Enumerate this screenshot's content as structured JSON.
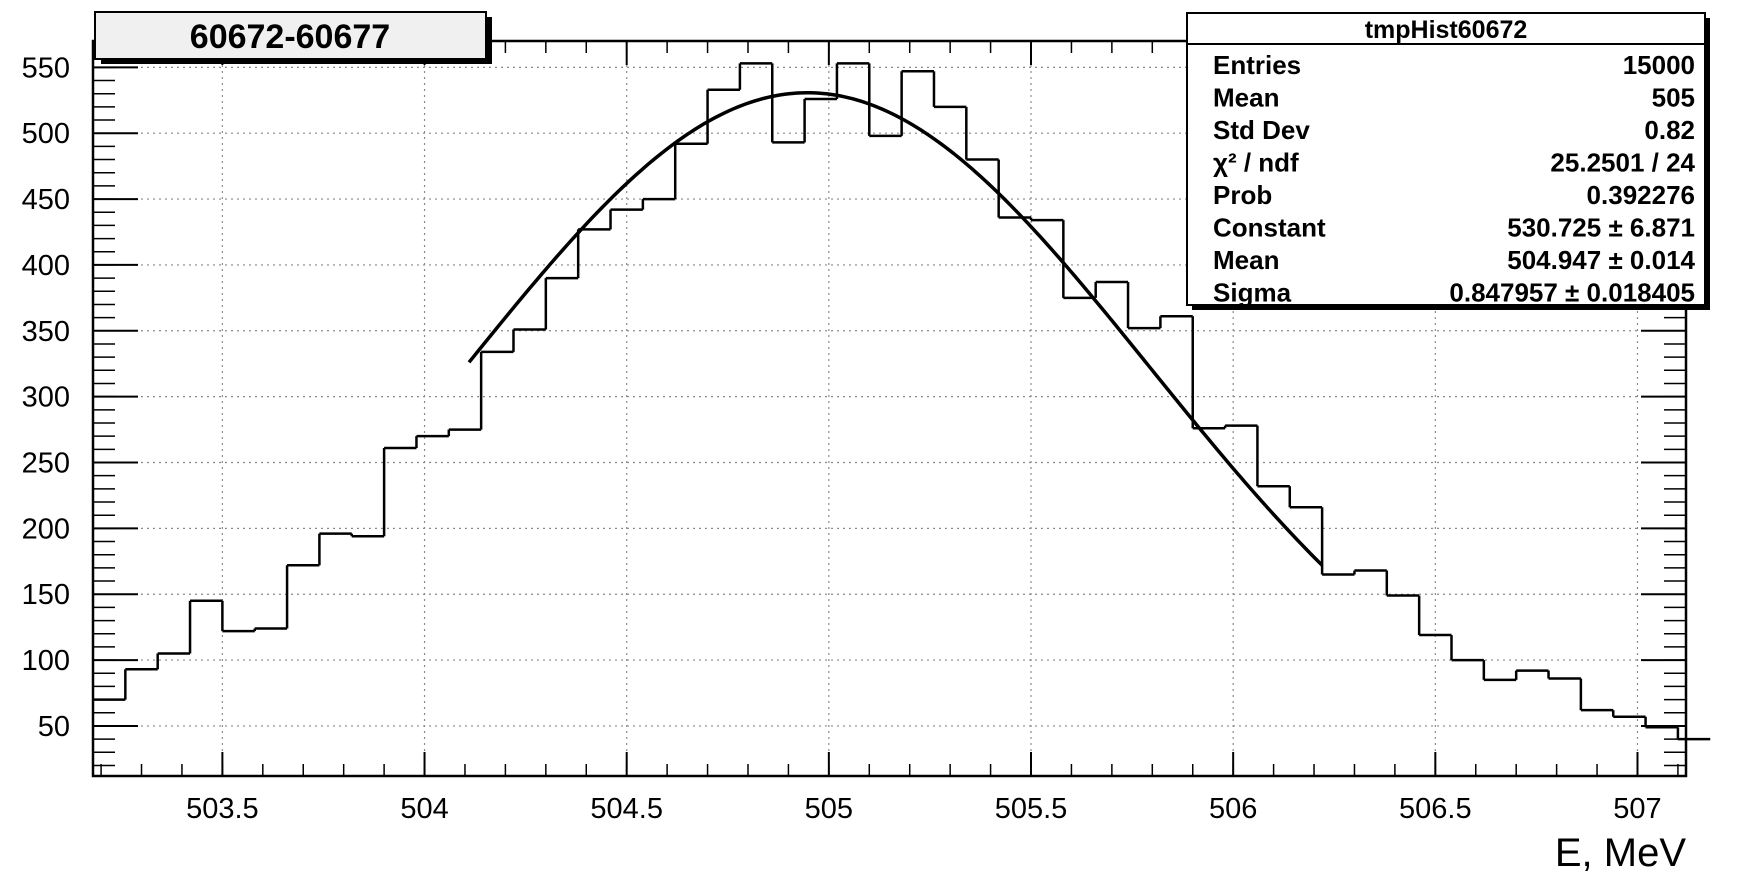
{
  "chart_data": {
    "type": "histogram",
    "title": "60672-60677",
    "xlabel": "E, MeV",
    "ylabel": "",
    "xlim": [
      503.18,
      507.12
    ],
    "ylim": [
      12,
      570
    ],
    "xticks": [
      "503.5",
      "504",
      "504.5",
      "505",
      "505.5",
      "506",
      "506.5",
      "507"
    ],
    "yticks": [
      "50",
      "100",
      "150",
      "200",
      "250",
      "300",
      "350",
      "400",
      "450",
      "500",
      "550"
    ],
    "grid": true,
    "bin_width": 0.08,
    "bin_start": 503.18,
    "values": [
      70,
      93,
      105,
      145,
      122,
      124,
      172,
      196,
      194,
      261,
      270,
      275,
      334,
      351,
      390,
      427,
      442,
      450,
      492,
      533,
      553,
      493,
      526,
      553,
      498,
      547,
      520,
      480,
      436,
      434,
      375,
      387,
      352,
      361,
      276,
      278,
      232,
      216,
      165,
      168,
      149,
      119,
      100,
      85,
      92,
      86,
      62,
      57,
      49,
      40
    ],
    "fit": {
      "type": "gaussian",
      "constant": 530.725,
      "mean": 504.947,
      "sigma": 0.847957,
      "x_range": [
        504.11,
        506.22
      ]
    },
    "stats": {
      "name": "tmpHist60672",
      "rows": [
        {
          "label": "Entries",
          "value": "15000"
        },
        {
          "label": "Mean",
          "value": "505"
        },
        {
          "label": "Std Dev",
          "value": "0.82"
        },
        {
          "label": "χ² / ndf",
          "value": "25.2501 / 24"
        },
        {
          "label": "Prob",
          "value": "0.392276"
        },
        {
          "label": "Constant",
          "value": "530.725 ± 6.871"
        },
        {
          "label": "Mean",
          "value": "504.947 ± 0.014"
        },
        {
          "label": "Sigma",
          "value": "0.847957 ± 0.018405"
        }
      ]
    }
  }
}
